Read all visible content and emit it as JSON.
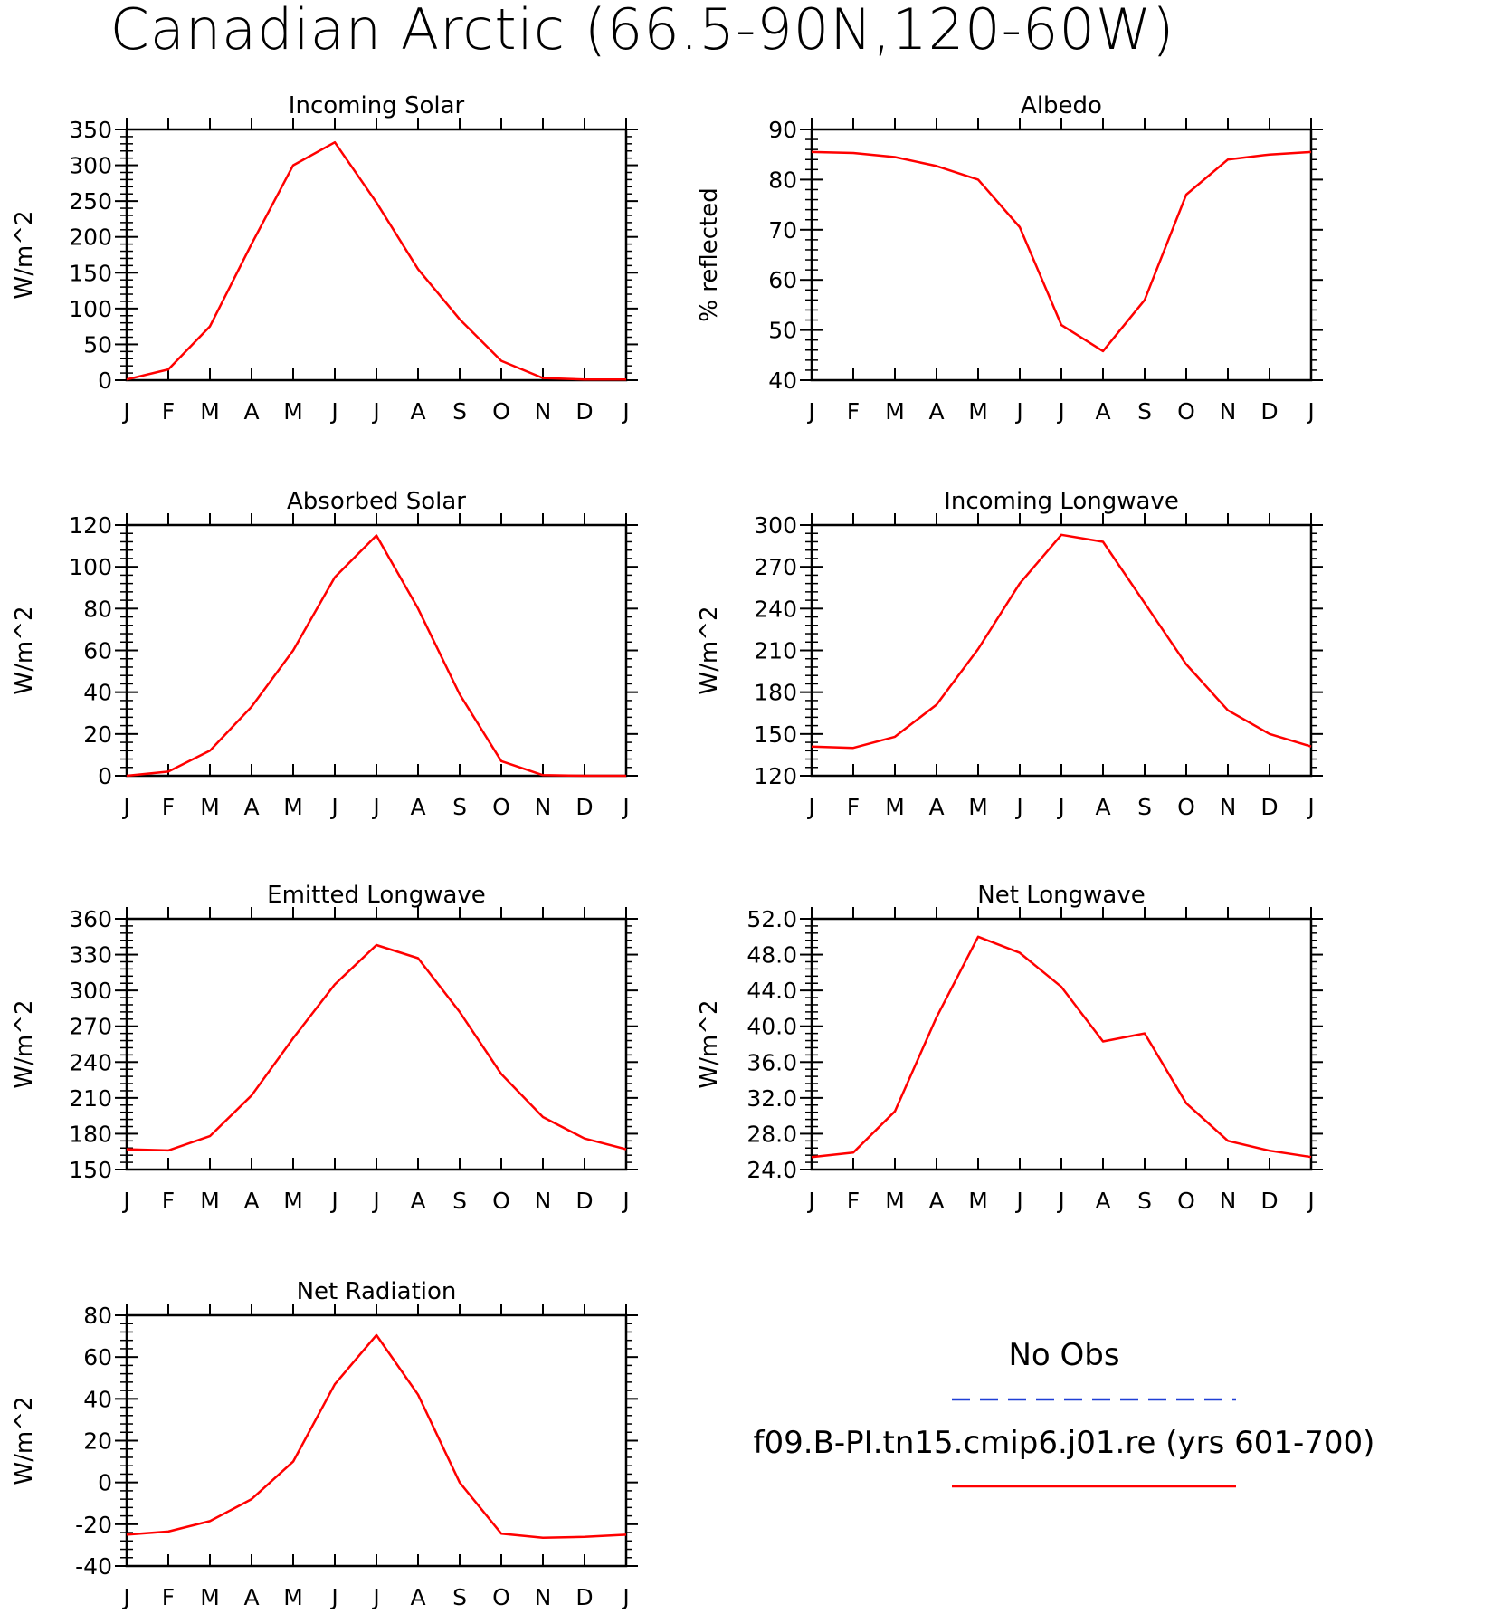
{
  "title": "Canadian Arctic (66.5-90N,120-60W)",
  "legend": {
    "obs_label": "No Obs",
    "obs_color": "#1f3fd6",
    "model_label": "f09.B-PI.tn15.cmip6.j01.re (yrs 601-700)",
    "model_color": "#ff0000"
  },
  "chart_data": [
    {
      "type": "line",
      "title": "Incoming Solar",
      "ylabel": "W/m^2",
      "categories": [
        "J",
        "F",
        "M",
        "A",
        "M",
        "J",
        "J",
        "A",
        "S",
        "O",
        "N",
        "D",
        "J"
      ],
      "ylim": [
        0,
        350
      ],
      "yticks": [
        "0",
        "50",
        "100",
        "150",
        "200",
        "250",
        "300",
        "350"
      ],
      "series": [
        {
          "values": [
            1,
            15,
            75,
            190,
            300,
            332,
            248,
            155,
            85,
            27,
            3,
            1,
            1
          ]
        }
      ]
    },
    {
      "type": "line",
      "title": "Albedo",
      "ylabel": "% reflected",
      "categories": [
        "J",
        "F",
        "M",
        "A",
        "M",
        "J",
        "J",
        "A",
        "S",
        "O",
        "N",
        "D",
        "J"
      ],
      "ylim": [
        40,
        90
      ],
      "yticks": [
        "40",
        "50",
        "60",
        "70",
        "80",
        "90"
      ],
      "series": [
        {
          "values": [
            85.5,
            85.3,
            84.5,
            82.7,
            80,
            70.5,
            51,
            45.8,
            56,
            77,
            84,
            85,
            85.5
          ]
        }
      ]
    },
    {
      "type": "line",
      "title": "Absorbed Solar",
      "ylabel": "W/m^2",
      "categories": [
        "J",
        "F",
        "M",
        "A",
        "M",
        "J",
        "J",
        "A",
        "S",
        "O",
        "N",
        "D",
        "J"
      ],
      "ylim": [
        0,
        120
      ],
      "yticks": [
        "0",
        "20",
        "40",
        "60",
        "80",
        "100",
        "120"
      ],
      "series": [
        {
          "values": [
            0,
            2,
            12,
            33,
            60,
            95,
            115,
            80,
            39,
            7,
            0.3,
            0,
            0
          ]
        }
      ]
    },
    {
      "type": "line",
      "title": "Incoming Longwave",
      "ylabel": "W/m^2",
      "categories": [
        "J",
        "F",
        "M",
        "A",
        "M",
        "J",
        "J",
        "A",
        "S",
        "O",
        "N",
        "D",
        "J"
      ],
      "ylim": [
        120,
        300
      ],
      "yticks": [
        "120",
        "150",
        "180",
        "210",
        "240",
        "270",
        "300"
      ],
      "series": [
        {
          "values": [
            141,
            140,
            148,
            171,
            211,
            258,
            293,
            288,
            244,
            200,
            167,
            150,
            141
          ]
        }
      ]
    },
    {
      "type": "line",
      "title": "Emitted Longwave",
      "ylabel": "W/m^2",
      "categories": [
        "J",
        "F",
        "M",
        "A",
        "M",
        "J",
        "J",
        "A",
        "S",
        "O",
        "N",
        "D",
        "J"
      ],
      "ylim": [
        150,
        360
      ],
      "yticks": [
        "150",
        "180",
        "210",
        "240",
        "270",
        "300",
        "330",
        "360"
      ],
      "series": [
        {
          "values": [
            167,
            166,
            178,
            212,
            260,
            305,
            338,
            327,
            282,
            230,
            194,
            176,
            167
          ]
        }
      ]
    },
    {
      "type": "line",
      "title": "Net Longwave",
      "ylabel": "W/m^2",
      "categories": [
        "J",
        "F",
        "M",
        "A",
        "M",
        "J",
        "J",
        "A",
        "S",
        "O",
        "N",
        "D",
        "J"
      ],
      "ylim": [
        24,
        52
      ],
      "yticks": [
        "24.0",
        "28.0",
        "32.0",
        "36.0",
        "40.0",
        "44.0",
        "48.0",
        "52.0"
      ],
      "series": [
        {
          "values": [
            25.4,
            25.9,
            30.5,
            41,
            50,
            48.2,
            44.4,
            38.3,
            39.2,
            31.4,
            27.2,
            26.1,
            25.4
          ]
        }
      ]
    },
    {
      "type": "line",
      "title": "Net Radiation",
      "ylabel": "W/m^2",
      "categories": [
        "J",
        "F",
        "M",
        "A",
        "M",
        "J",
        "J",
        "A",
        "S",
        "O",
        "N",
        "D",
        "J"
      ],
      "ylim": [
        -40,
        80
      ],
      "yticks": [
        "-40",
        "-20",
        "0",
        "20",
        "40",
        "60",
        "80"
      ],
      "series": [
        {
          "values": [
            -25,
            -23.5,
            -18.5,
            -8,
            10,
            47,
            70.5,
            42,
            0,
            -24.5,
            -26.5,
            -26,
            -25
          ]
        }
      ]
    }
  ]
}
